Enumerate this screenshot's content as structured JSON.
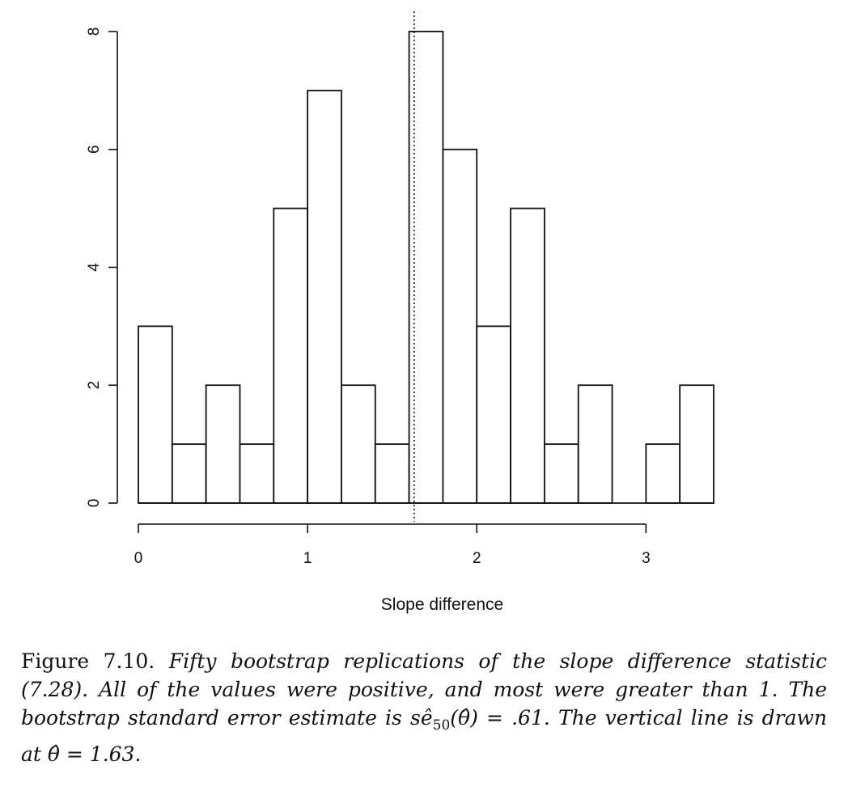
{
  "chart_data": {
    "type": "bar",
    "title": "",
    "xlabel": "Slope difference",
    "ylabel": "",
    "bin_width": 0.2,
    "bin_starts": [
      0.0,
      0.2,
      0.4,
      0.6,
      0.8,
      1.0,
      1.2,
      1.4,
      1.6,
      1.8,
      2.0,
      2.2,
      2.4,
      2.6,
      2.8,
      3.0,
      3.2
    ],
    "values": [
      3,
      1,
      2,
      1,
      5,
      7,
      2,
      1,
      8,
      6,
      3,
      5,
      1,
      2,
      0,
      1,
      2
    ],
    "xlim": [
      0,
      3.4
    ],
    "ylim": [
      0,
      8
    ],
    "x_ticks": [
      0,
      1,
      2,
      3
    ],
    "x_tick_labels": [
      "0",
      "1",
      "2",
      "3"
    ],
    "y_ticks": [
      0,
      2,
      4,
      6,
      8
    ],
    "y_tick_labels": [
      "0",
      "2",
      "4",
      "6",
      "8"
    ],
    "vertical_line": 1.63,
    "grid": false,
    "legend": "none"
  },
  "caption": {
    "label": "Figure 7.10.",
    "body_part1": "Fifty bootstrap replications of the slope difference statistic (7.28). All of the values were positive, and most were greater than 1. The bootstrap standard error estimate is ",
    "se_symbol": "sê",
    "se_subscript": "50",
    "body_part2": "(θ̂) = .61. The vertical line is drawn at θ̂ = 1.63."
  }
}
